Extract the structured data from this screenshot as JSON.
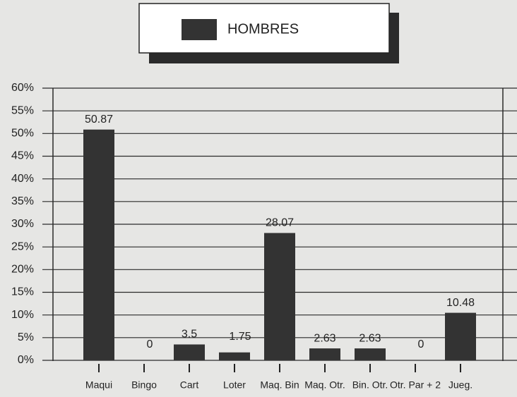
{
  "chart_data": {
    "type": "bar",
    "categories": [
      "Maqui",
      "Bingo",
      "Cart",
      "Loter",
      "Maq. Bin",
      "Maq. Otr.",
      "Bin. Otr.",
      "Otr. Par + 2",
      "Jueg."
    ],
    "series": [
      {
        "name": "HOMBRES",
        "color": "#333333",
        "values": [
          50.87,
          0,
          3.5,
          1.75,
          28.07,
          2.63,
          2.63,
          0,
          10.48
        ]
      }
    ],
    "ylim": [
      0,
      60
    ],
    "yticks": [
      {
        "value": 0,
        "label": "0%"
      },
      {
        "value": 5,
        "label": "5%"
      },
      {
        "value": 10,
        "label": "10%"
      },
      {
        "value": 15,
        "label": "15%"
      },
      {
        "value": 20,
        "label": "20%"
      },
      {
        "value": 25,
        "label": "25%"
      },
      {
        "value": 30,
        "label": "30%"
      },
      {
        "value": 35,
        "label": "35%"
      },
      {
        "value": 40,
        "label": "40%"
      },
      {
        "value": 45,
        "label": "45%"
      },
      {
        "value": 50,
        "label": "50%"
      },
      {
        "value": 55,
        "label": "55%"
      },
      {
        "value": 60,
        "label": "60%"
      }
    ],
    "grid": true
  }
}
